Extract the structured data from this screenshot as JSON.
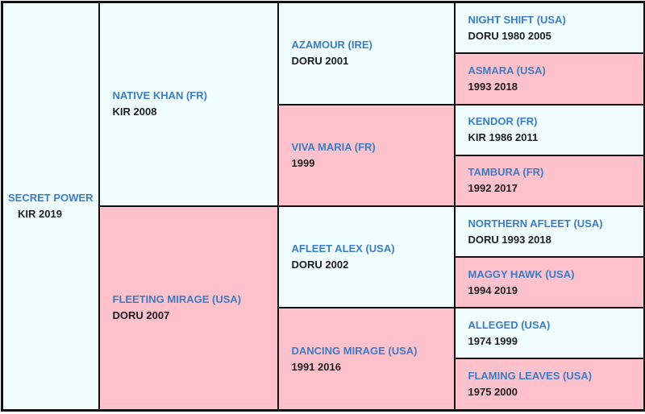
{
  "pedigree": {
    "subject": {
      "name": "SECRET POWER",
      "details": "KIR 2019"
    },
    "sire": {
      "name": "NATIVE KHAN (FR)",
      "details": "KIR 2008"
    },
    "dam": {
      "name": "FLEETING MIRAGE (USA)",
      "details": "DORU 2007"
    },
    "sire_sire": {
      "name": "AZAMOUR (IRE)",
      "details": "DORU 2001"
    },
    "sire_dam": {
      "name": "VIVA MARIA (FR)",
      "details": "1999"
    },
    "dam_sire": {
      "name": "AFLEET ALEX (USA)",
      "details": "DORU 2002"
    },
    "dam_dam": {
      "name": "DANCING MIRAGE (USA)",
      "details": "1991 2016"
    },
    "gen3": [
      {
        "name": "NIGHT SHIFT (USA)",
        "details": "DORU 1980 2005"
      },
      {
        "name": "ASMARA (USA)",
        "details": "1993 2018"
      },
      {
        "name": "KENDOR (FR)",
        "details": "KIR 1986 2011"
      },
      {
        "name": "TAMBURA (FR)",
        "details": "1992 2017"
      },
      {
        "name": "NORTHERN AFLEET (USA)",
        "details": "DORU 1993 2018"
      },
      {
        "name": "MAGGY HAWK (USA)",
        "details": "1994 2019"
      },
      {
        "name": "ALLEGED (USA)",
        "details": "1974 1999"
      },
      {
        "name": "FLAMING LEAVES (USA)",
        "details": "1975 2000"
      }
    ]
  }
}
